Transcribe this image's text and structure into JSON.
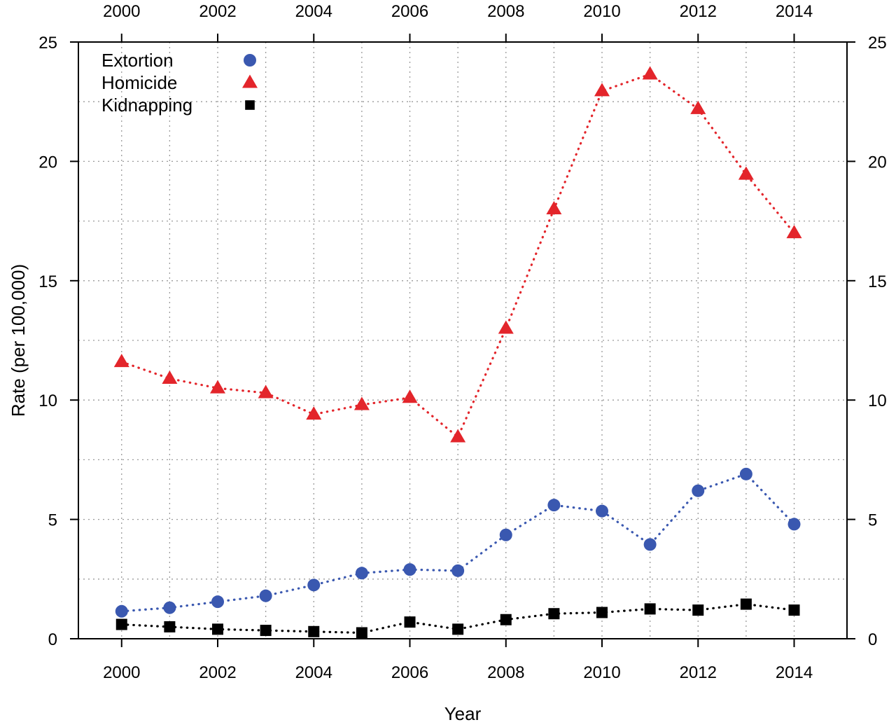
{
  "chart_data": {
    "type": "line",
    "xlabel": "Year",
    "ylabel": "Rate (per 100,000)",
    "x": [
      2000,
      2001,
      2002,
      2003,
      2004,
      2005,
      2006,
      2007,
      2008,
      2009,
      2010,
      2011,
      2012,
      2013,
      2014
    ],
    "x_ticks": [
      "2000",
      "2002",
      "2004",
      "2006",
      "2008",
      "2010",
      "2012",
      "2014"
    ],
    "xlim": [
      1999.1,
      2015.1
    ],
    "y_ticks": [
      "0",
      "5",
      "10",
      "15",
      "20",
      "25"
    ],
    "ylim": [
      0,
      25
    ],
    "grid": true,
    "line_style": "dotted",
    "legend_position": "top-left",
    "series": [
      {
        "name": "Extortion",
        "color": "#3a58b0",
        "marker": "circle",
        "values": [
          1.15,
          1.3,
          1.55,
          1.8,
          2.25,
          2.75,
          2.9,
          2.85,
          4.35,
          5.6,
          5.35,
          3.95,
          6.2,
          6.9,
          4.8
        ]
      },
      {
        "name": "Homicide",
        "color": "#e3252b",
        "marker": "triangle",
        "values": [
          11.6,
          10.9,
          10.5,
          10.3,
          9.4,
          9.8,
          10.1,
          8.45,
          13.0,
          18.0,
          22.95,
          23.65,
          22.2,
          19.45,
          17.0
        ]
      },
      {
        "name": "Kidnapping",
        "color": "#000000",
        "marker": "square",
        "values": [
          0.6,
          0.5,
          0.4,
          0.35,
          0.3,
          0.25,
          0.7,
          0.4,
          0.8,
          1.05,
          1.1,
          1.25,
          1.2,
          1.45,
          1.2
        ]
      }
    ]
  }
}
